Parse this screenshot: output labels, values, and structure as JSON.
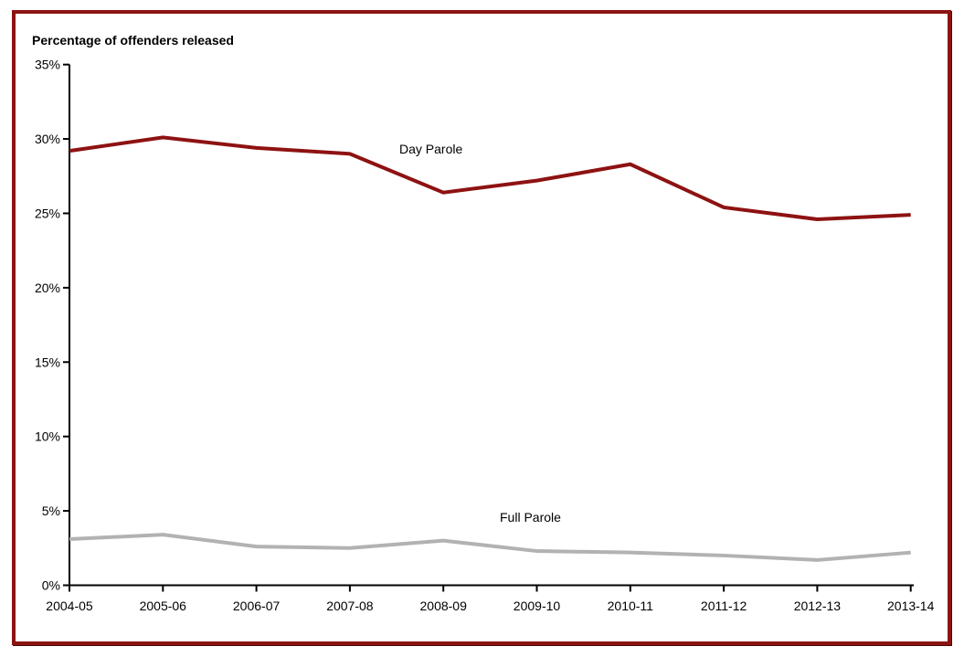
{
  "frame": {
    "border_color": "#8b1412",
    "background": "#ffffff"
  },
  "chart_data": {
    "type": "line",
    "title": "Percentage of offenders released",
    "categories": [
      "2004-05",
      "2005-06",
      "2006-07",
      "2007-08",
      "2008-09",
      "2009-10",
      "2010-11",
      "2011-12",
      "2012-13",
      "2013-14"
    ],
    "series": [
      {
        "name": "Day Parole",
        "color": "#8e1212",
        "values": [
          29.2,
          30.1,
          29.4,
          29.0,
          26.4,
          27.2,
          28.3,
          25.4,
          24.6,
          24.9
        ]
      },
      {
        "name": "Full Parole",
        "color": "#b2b2b2",
        "values": [
          3.1,
          3.4,
          2.6,
          2.5,
          3.0,
          2.3,
          2.2,
          2.0,
          1.7,
          2.2
        ]
      }
    ],
    "xlabel": "",
    "ylabel": "Percentage of offenders released",
    "ylim": [
      0,
      35
    ],
    "y_tick_step": 5,
    "y_tick_labels": [
      "0%",
      "5%",
      "10%",
      "15%",
      "20%",
      "25%",
      "30%",
      "35%"
    ],
    "grid": false,
    "legend": "inline labels beside lines",
    "axis_color": "#000000"
  }
}
